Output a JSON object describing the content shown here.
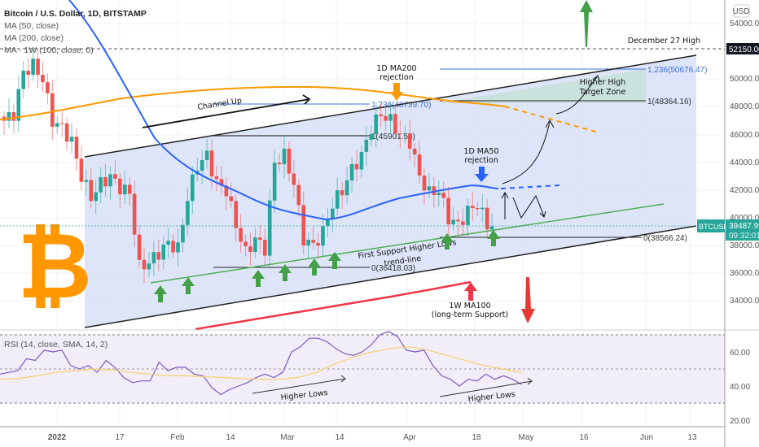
{
  "header": {
    "title": "Bitcoin / U.S. Dollar, 1D, BITSTAMP",
    "indicators": [
      "MA (50, close)",
      "MA (200, close)",
      "MA · 1W (100, close, 0)"
    ]
  },
  "price_axis": {
    "currency": "USD",
    "ticks": [
      "54000.00",
      "52000.00",
      "50000.00",
      "48000.00",
      "46000.00",
      "44000.00",
      "42000.00",
      "40000.00",
      "38000.00",
      "36000.00",
      "34000.00"
    ],
    "highlight_label": "52150.00",
    "current": {
      "symbol": "BTCUSD",
      "price": "39487.99",
      "countdown": "09:32:01"
    }
  },
  "rsi_axis": {
    "ticks": [
      "60.00",
      "40.00",
      "20.00"
    ]
  },
  "time_axis": {
    "ticks": [
      "2022",
      "17",
      "Feb",
      "14",
      "Mar",
      "14",
      "Apr",
      "18",
      "May",
      "16",
      "Jun",
      "13"
    ]
  },
  "rsi": {
    "label": "RSI (14, close, SMA, 14, 2)",
    "higher_lows_1": "Higher Lows",
    "higher_lows_2": "Higher Lows"
  },
  "annotations": {
    "dec27": "December 27 High",
    "channel_up": "Channel Up",
    "ma200_rej_1": "1D MA200",
    "ma200_rej_2": "rejection",
    "ma50_rej_1": "1D MA50",
    "ma50_rej_2": "rejection",
    "target_1": "Higher High",
    "target_2": "Target Zone",
    "support_1": "First Support Higher Lows",
    "support_2": "trend-line",
    "ma100_1": "1W MA100",
    "ma100_2": "(long-term Support)"
  },
  "fib_levels": {
    "f1236_upper": "1.236(50676.47)",
    "f1_upper": "1(48364.16)",
    "f1236_lower": "1.236(48739.70)",
    "f1_lower": "1(45901.58)",
    "f0_lower": "0(36418.03)",
    "f0_upper": "0(38566.24)"
  },
  "colors": {
    "up": "#26a69a",
    "down": "#ef5350",
    "ma50": "#2962ff",
    "ma200": "#ff9800",
    "ma100w": "#f23645",
    "channel": "#d6def7",
    "target": "#c8e0da",
    "support": "#4caf50",
    "rsi": "#7e57c2",
    "rsi_sma": "#f6d06a",
    "rsi_band": "#ede7f6",
    "arrow_green": "#43a047",
    "arrow_red": "#e53935",
    "btc": "#ff9800"
  },
  "chart_data": {
    "type": "candlestick",
    "title": "Bitcoin / U.S. Dollar, 1D, BITSTAMP",
    "xlabel": "",
    "ylabel": "USD",
    "ylim": [
      33000,
      55000
    ],
    "x_ticks": [
      "2022",
      "17",
      "Feb",
      "14",
      "Mar",
      "14",
      "Apr",
      "18",
      "May",
      "16",
      "Jun",
      "13"
    ],
    "y_ticks": [
      34000,
      36000,
      38000,
      40000,
      42000,
      44000,
      46000,
      48000,
      50000,
      52000,
      54000
    ],
    "series": [
      {
        "name": "BTCUSD close (approx, sampled)",
        "values": [
          47000,
          47500,
          50500,
          51000,
          50000,
          47000,
          46500,
          45500,
          43000,
          41500,
          42500,
          43000,
          42200,
          41800,
          36500,
          36800,
          37500,
          38200,
          37800,
          41500,
          43800,
          44500,
          42500,
          42000,
          39500,
          37500,
          38500,
          37800,
          44000,
          44500,
          42500,
          38500,
          38000,
          39000,
          41000,
          42000,
          43500,
          44500,
          46500,
          47500,
          47000,
          46000,
          45500,
          43000,
          41800,
          42000,
          40000,
          39500,
          40500,
          41000,
          39500,
          39487.99
        ]
      },
      {
        "name": "MA (50, close)",
        "values": [
          55000,
          50000,
          45000,
          43000,
          41500,
          40000,
          39700,
          41500,
          42100,
          42000
        ]
      },
      {
        "name": "MA (200, close)",
        "values": [
          48200,
          48800,
          49200,
          49200,
          48800,
          48300,
          47800,
          47000
        ]
      },
      {
        "name": "MA 1W (100)",
        "values": [
          32800,
          33500,
          34500,
          35400
        ]
      }
    ],
    "levels": {
      "dec_27_high": 52150,
      "fib_1236_upper": 50676.47,
      "fib_1_upper": 48364.16,
      "fib_1236_lower": 48739.7,
      "fib_1_lower": 45901.58,
      "fib_0_lower": 36418.03,
      "fib_0_upper": 38566.24,
      "current": 39487.99
    },
    "rsi": {
      "label": "RSI (14, close, SMA, 14, 2)",
      "ylim": [
        15,
        80
      ],
      "bands": [
        30,
        50,
        70
      ],
      "values": [
        47,
        48,
        49,
        56,
        55,
        61,
        60,
        61,
        52,
        50,
        52,
        48,
        55,
        51,
        45,
        42,
        43,
        43,
        54,
        49,
        51,
        51,
        47,
        46,
        39,
        35,
        38,
        40,
        42,
        45,
        47,
        45,
        48,
        60,
        63,
        68,
        68,
        66,
        62,
        59,
        58,
        60,
        64,
        70,
        72,
        69,
        61,
        60,
        61,
        52,
        46,
        44,
        40,
        44,
        43,
        47,
        44,
        46,
        44,
        41
      ],
      "sma_values": [
        44,
        44.5,
        46,
        48,
        49,
        50,
        49.5,
        48,
        47,
        46,
        46,
        45.5,
        45,
        44.5,
        44,
        44,
        45,
        48,
        53,
        57,
        60,
        62,
        63,
        61,
        58,
        55,
        52,
        50,
        48
      ]
    }
  }
}
